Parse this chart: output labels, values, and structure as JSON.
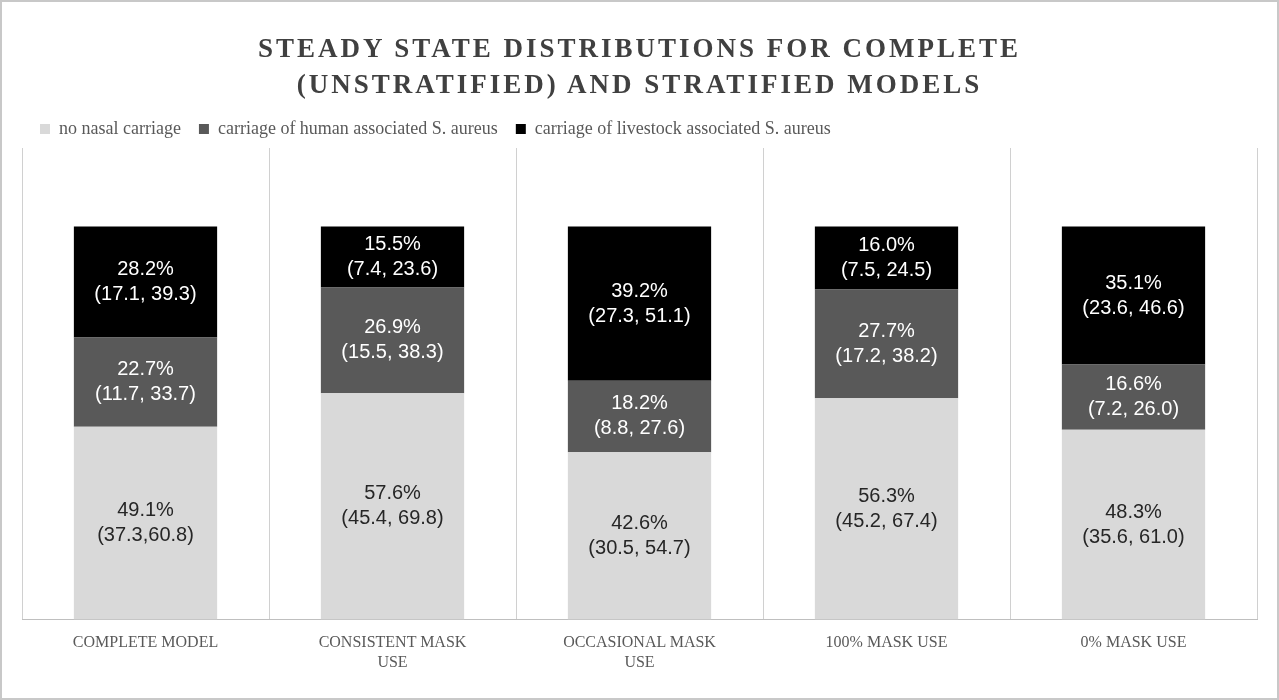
{
  "chart_data": {
    "type": "bar",
    "title": "STEADY STATE DISTRIBUTIONS FOR COMPLETE (UNSTRATIFIED) AND STRATIFIED MODELS",
    "categories": [
      "COMPLETE MODEL",
      "CONSISTENT MASK USE",
      "OCCASIONAL MASK USE",
      "100% MASK USE",
      "0% MASK USE"
    ],
    "stacked": true,
    "legend": "top",
    "grid": "x",
    "tick_labels": "x",
    "series": [
      {
        "name": "no nasal carriage",
        "color": "#d9d9d9",
        "values": [
          49.1,
          57.6,
          42.6,
          56.3,
          48.3
        ],
        "value_labels": [
          "49.1%\n(37.3,60.8)",
          "57.6%\n(45.4, 69.8)",
          "42.6%\n(30.5, 54.7)",
          "56.3%\n(45.2, 67.4)",
          "48.3%\n(35.6, 61.0)"
        ]
      },
      {
        "name": "carriage of human associated S. aureus",
        "color": "#595959",
        "values": [
          22.7,
          26.9,
          18.2,
          27.7,
          16.6
        ],
        "value_labels": [
          "22.7%\n(11.7, 33.7)",
          "26.9%\n(15.5, 38.3)",
          "18.2%\n(8.8, 27.6)",
          "27.7%\n(17.2, 38.2)",
          "16.6%\n(7.2, 26.0)"
        ]
      },
      {
        "name": "carriage of livestock associated S. aureus",
        "color": "#000000",
        "values": [
          28.2,
          15.5,
          39.2,
          16.0,
          35.1
        ],
        "value_labels": [
          "28.2%\n(17.1, 39.3)",
          "15.5%\n(7.4, 23.6)",
          "39.2%\n(27.3, 51.1)",
          "16.0%\n(7.5, 24.5)",
          "35.1%\n(23.6, 46.6)"
        ]
      }
    ]
  }
}
